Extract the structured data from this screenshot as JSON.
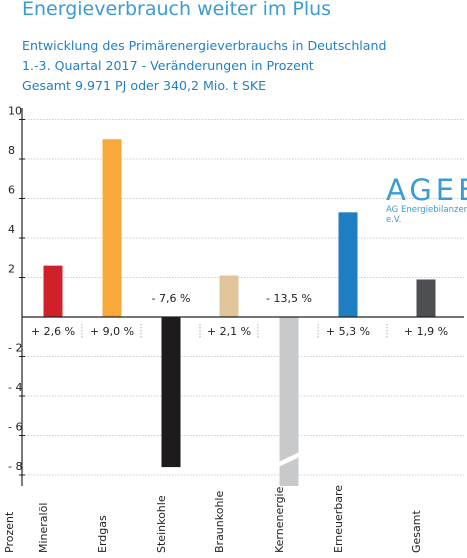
{
  "header": {
    "title": "Energieverbrauch weiter im Plus",
    "subtitle_1": "Entwicklung des Primärenergieverbrauchs in Deutschland",
    "subtitle_2": "1.-3. Quartal 2017 - Veränderungen in Prozent",
    "subtitle_3": "Gesamt 9.971 PJ oder 340,2 Mio. t SKE"
  },
  "logo": {
    "text": "AGEB",
    "subtext": "AG Energiebilanzen e.V."
  },
  "colors": {
    "accent": "#3a9bd5"
  },
  "chart_data": {
    "type": "bar",
    "title": "",
    "xlabel": "",
    "ylabel": "Prozent",
    "ylim": [
      -8.5,
      10
    ],
    "yticks": [
      10,
      8,
      6,
      4,
      2,
      -2,
      -4,
      -6,
      -8
    ],
    "ytick_labels": [
      "10",
      "8",
      "6",
      "4",
      "2",
      "- 2",
      "- 4",
      "- 6",
      "- 8"
    ],
    "grid": true,
    "categories": [
      "Mineralöl",
      "Erdgas",
      "Steinkohle",
      "Braunkohle",
      "Kernenergie",
      "Erneuerbare",
      "Gesamt"
    ],
    "values": [
      2.6,
      9.0,
      -7.6,
      2.1,
      -13.5,
      5.3,
      1.9
    ],
    "data_labels": [
      "+ 2,6 %",
      "+ 9,0 %",
      "- 7,6 %",
      "+ 2,1 %",
      "- 13,5 %",
      "+ 5,3 %",
      "+ 1,9 %"
    ],
    "bar_colors": [
      "#d0202a",
      "#f9a93a",
      "#1e1b1c",
      "#e0c49a",
      "#c7c9cb",
      "#1f7dc2",
      "#4d4f52"
    ],
    "axis_break": "Kernenergie"
  }
}
